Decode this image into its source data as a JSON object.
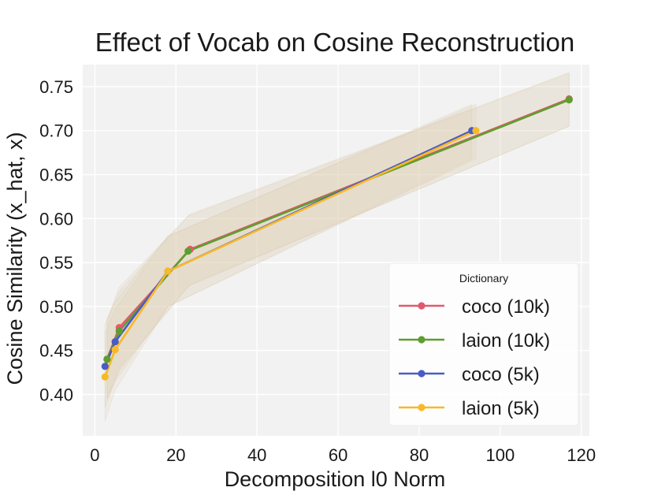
{
  "chart_data": {
    "type": "line",
    "title": "Effect of Vocab on Cosine Reconstruction",
    "xlabel": "Decomposition l0 Norm",
    "ylabel": "Cosine Similarity (x_hat, x)",
    "xlim": [
      -3,
      122
    ],
    "ylim": [
      0.353,
      0.775
    ],
    "xticks": [
      0,
      20,
      40,
      60,
      80,
      100,
      120
    ],
    "xtick_labels": [
      "0",
      "20",
      "40",
      "60",
      "80",
      "100",
      "120"
    ],
    "yticks": [
      0.4,
      0.45,
      0.5,
      0.55,
      0.6,
      0.65,
      0.7,
      0.75
    ],
    "ytick_labels": [
      "0.40",
      "0.45",
      "0.50",
      "0.55",
      "0.60",
      "0.65",
      "0.70",
      "0.75"
    ],
    "grid": true,
    "legend": {
      "title": "Dictionary",
      "position": "center-right"
    },
    "series": [
      {
        "name": "coco (10k)",
        "color": "#e05a6d",
        "x": [
          3,
          6,
          23.5,
          117
        ],
        "y": [
          0.44,
          0.476,
          0.565,
          0.736
        ],
        "band_low": [
          0.395,
          0.43,
          0.525,
          0.705
        ],
        "band_high": [
          0.485,
          0.522,
          0.605,
          0.766
        ]
      },
      {
        "name": "laion (10k)",
        "color": "#5e9e2e",
        "x": [
          3,
          6,
          23,
          117
        ],
        "y": [
          0.44,
          0.472,
          0.563,
          0.735
        ],
        "band_low": [
          0.395,
          0.427,
          0.523,
          0.705
        ],
        "band_high": [
          0.485,
          0.517,
          0.603,
          0.765
        ]
      },
      {
        "name": "coco (5k)",
        "color": "#4a5cc4",
        "x": [
          2.5,
          5,
          18,
          93
        ],
        "y": [
          0.432,
          0.46,
          0.54,
          0.7
        ],
        "band_low": [
          0.385,
          0.415,
          0.5,
          0.668
        ],
        "band_high": [
          0.48,
          0.505,
          0.58,
          0.73
        ]
      },
      {
        "name": "laion (5k)",
        "color": "#f7b928",
        "x": [
          2.5,
          5,
          18,
          94
        ],
        "y": [
          0.42,
          0.451,
          0.54,
          0.7
        ],
        "band_low": [
          0.37,
          0.405,
          0.5,
          0.668
        ],
        "band_high": [
          0.47,
          0.497,
          0.58,
          0.73
        ]
      }
    ]
  }
}
